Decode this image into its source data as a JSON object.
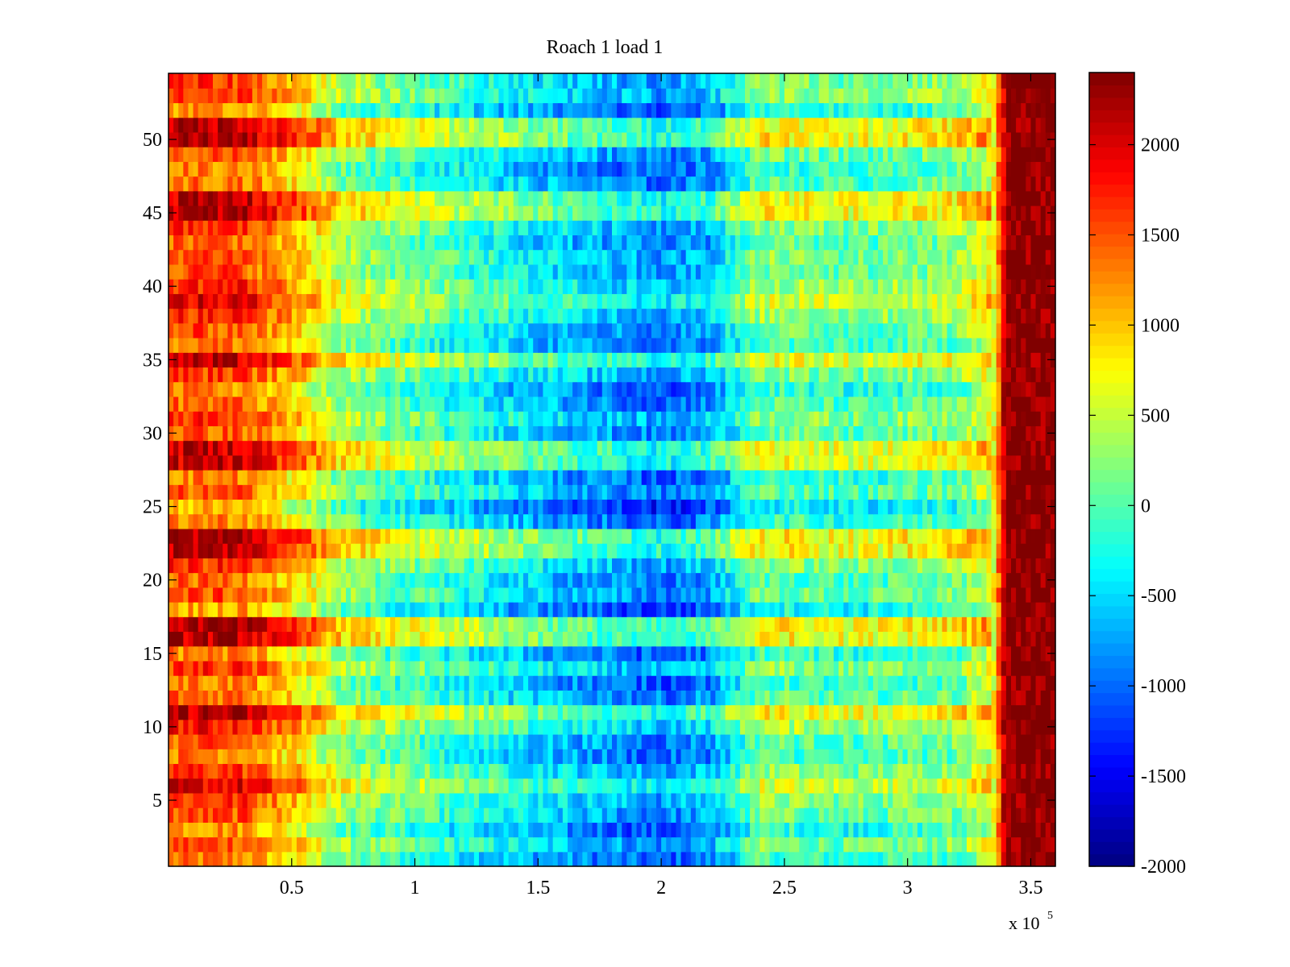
{
  "chart_data": {
    "type": "heatmap",
    "title": "Roach 1 load 1",
    "xlabel": "",
    "ylabel": "",
    "x_multiplier_label": "x 10",
    "x_multiplier_exponent": "5",
    "xlim": [
      0,
      3.6
    ],
    "ylim": [
      0.5,
      54.5
    ],
    "x_ticks": [
      0.5,
      1,
      1.5,
      2,
      2.5,
      3,
      3.5
    ],
    "x_tick_labels": [
      "0.5",
      "1",
      "1.5",
      "2",
      "2.5",
      "3",
      "3.5"
    ],
    "y_ticks": [
      5,
      10,
      15,
      20,
      25,
      30,
      35,
      40,
      45,
      50
    ],
    "y_tick_labels": [
      "5",
      "10",
      "15",
      "20",
      "25",
      "30",
      "35",
      "40",
      "45",
      "50"
    ],
    "rows": 54,
    "colormap": "jet",
    "colorbar": {
      "range": [
        -2000,
        2400
      ],
      "ticks": [
        -2000,
        -1500,
        -1000,
        -500,
        0,
        500,
        1000,
        1500,
        2000
      ],
      "tick_labels": [
        "-2000",
        "-1500",
        "-1000",
        "-500",
        "0",
        "500",
        "1000",
        "1500",
        "2000"
      ]
    },
    "profile_x": [
      0.0,
      0.3,
      0.6,
      0.7,
      1.0,
      1.5,
      2.0,
      2.2,
      2.4,
      2.8,
      3.2,
      3.35,
      3.4,
      3.6
    ],
    "profile_values": [
      1500,
      1500,
      700,
      300,
      0,
      -500,
      -900,
      -700,
      150,
      0,
      200,
      700,
      2400,
      2400
    ],
    "row_offsets": [
      150,
      400,
      100,
      350,
      500,
      800,
      500,
      200,
      300,
      650,
      1000,
      300,
      150,
      500,
      150,
      1000,
      1050,
      0,
      350,
      250,
      500,
      1000,
      1050,
      150,
      -100,
      300,
      150,
      900,
      950,
      300,
      500,
      250,
      100,
      450,
      900,
      200,
      350,
      550,
      800,
      600,
      400,
      450,
      300,
      500,
      1000,
      950,
      250,
      150,
      350,
      1050,
      1000,
      100,
      500,
      450
    ]
  }
}
